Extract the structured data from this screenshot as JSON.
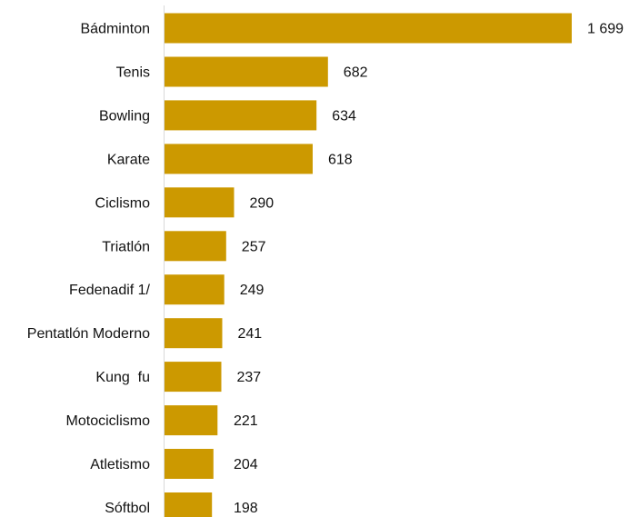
{
  "chart_data": {
    "type": "bar",
    "orientation": "horizontal",
    "categories": [
      "Bádminton",
      "Tenis",
      "Bowling",
      "Karate",
      "Ciclismo",
      "Triatlón",
      "Fedenadif 1/",
      "Pentatlón Moderno",
      "Kung  fu",
      "Motociclismo",
      "Atletismo",
      "Sóftbol"
    ],
    "values": [
      1699,
      682,
      634,
      618,
      290,
      257,
      249,
      241,
      237,
      221,
      204,
      198
    ],
    "value_labels": [
      "1 699",
      "682",
      "634",
      "618",
      "290",
      "257",
      "249",
      "241",
      "237",
      "221",
      "204",
      "198"
    ],
    "xlim": [
      0,
      1740
    ],
    "grid": false,
    "colors": {
      "bar": "#CC9900",
      "axis": "#D9D9D9",
      "text": "#111111"
    }
  }
}
